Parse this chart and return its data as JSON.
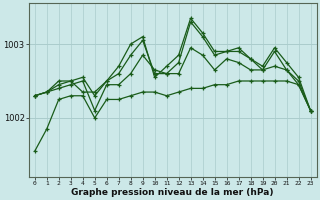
{
  "title": "Graphe pression niveau de la mer (hPa)",
  "bg_color": "#cce8e8",
  "grid_color": "#aacccc",
  "line_color": "#1a5c1a",
  "x_labels": [
    "0",
    "1",
    "2",
    "3",
    "4",
    "5",
    "6",
    "7",
    "8",
    "9",
    "10",
    "11",
    "12",
    "13",
    "14",
    "15",
    "16",
    "17",
    "18",
    "19",
    "20",
    "21",
    "22",
    "23"
  ],
  "yticks": [
    1002,
    1003
  ],
  "ylim": [
    1001.2,
    1003.55
  ],
  "series": [
    [
      1001.55,
      1001.85,
      1002.25,
      1002.3,
      1002.3,
      1002.0,
      1002.25,
      1002.25,
      1002.3,
      1002.35,
      1002.35,
      1002.3,
      1002.35,
      1002.4,
      1002.4,
      1002.45,
      1002.45,
      1002.5,
      1002.5,
      1002.5,
      1002.5,
      1002.5,
      1002.45,
      1002.1
    ],
    [
      1002.3,
      1002.35,
      1002.4,
      1002.45,
      1002.5,
      1002.1,
      1002.45,
      1002.45,
      1002.6,
      1002.85,
      1002.65,
      1002.6,
      1002.6,
      1002.95,
      1002.85,
      1002.65,
      1002.8,
      1002.75,
      1002.65,
      1002.65,
      1002.7,
      1002.65,
      1002.45,
      1002.1
    ],
    [
      1002.3,
      1002.35,
      1002.45,
      1002.5,
      1002.35,
      1002.35,
      1002.5,
      1002.6,
      1002.85,
      1003.05,
      1002.6,
      1002.6,
      1002.75,
      1003.3,
      1003.1,
      1002.85,
      1002.9,
      1002.9,
      1002.8,
      1002.65,
      1002.9,
      1002.65,
      1002.5,
      1002.1
    ],
    [
      1002.3,
      1002.35,
      1002.5,
      1002.5,
      1002.55,
      1002.3,
      1002.5,
      1002.7,
      1003.0,
      1003.1,
      1002.55,
      1002.7,
      1002.85,
      1003.35,
      1003.15,
      1002.9,
      1002.9,
      1002.95,
      1002.8,
      1002.7,
      1002.95,
      1002.75,
      1002.55,
      1002.1
    ]
  ],
  "marker": "+",
  "marker_size": 3.5,
  "linewidth": 0.9
}
